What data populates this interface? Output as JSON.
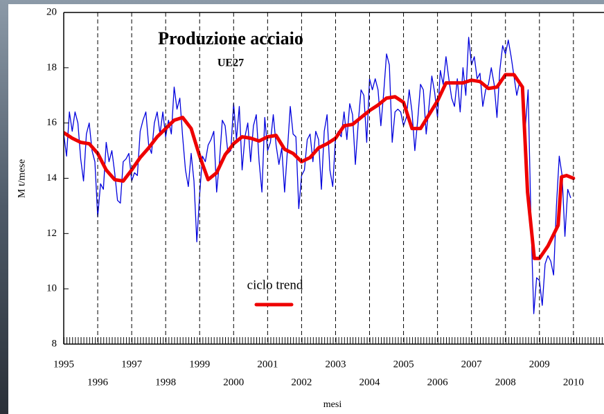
{
  "chart_data": {
    "type": "line",
    "title": "Produzione acciaio",
    "subtitle": "UE27",
    "y_label": "M t/mese",
    "x_label": "mesi",
    "xlim": [
      1995,
      2010.9
    ],
    "ylim": [
      8,
      20
    ],
    "xticks": [
      1995,
      1996,
      1997,
      1998,
      1999,
      2000,
      2001,
      2002,
      2003,
      2004,
      2005,
      2006,
      2007,
      2008,
      2009,
      2010
    ],
    "yticks": [
      8,
      10,
      12,
      14,
      16,
      18,
      20
    ],
    "grid": true,
    "legend": "center",
    "series": [
      {
        "color": "#0000dd",
        "x": [
          1995.0,
          1995.083,
          1995.167,
          1995.25,
          1995.333,
          1995.417,
          1995.5,
          1995.583,
          1995.667,
          1995.75,
          1995.833,
          1995.917,
          1996.0,
          1996.083,
          1996.167,
          1996.25,
          1996.333,
          1996.417,
          1996.5,
          1996.583,
          1996.667,
          1996.75,
          1996.833,
          1996.917,
          1997.0,
          1997.083,
          1997.167,
          1997.25,
          1997.333,
          1997.417,
          1997.5,
          1997.583,
          1997.667,
          1997.75,
          1997.833,
          1997.917,
          1998.0,
          1998.083,
          1998.167,
          1998.25,
          1998.333,
          1998.417,
          1998.5,
          1998.583,
          1998.667,
          1998.75,
          1998.833,
          1998.917,
          1999.0,
          1999.083,
          1999.167,
          1999.25,
          1999.333,
          1999.417,
          1999.5,
          1999.583,
          1999.667,
          1999.75,
          1999.833,
          1999.917,
          2000.0,
          2000.083,
          2000.167,
          2000.25,
          2000.333,
          2000.417,
          2000.5,
          2000.583,
          2000.667,
          2000.75,
          2000.833,
          2000.917,
          2001.0,
          2001.083,
          2001.167,
          2001.25,
          2001.333,
          2001.417,
          2001.5,
          2001.583,
          2001.667,
          2001.75,
          2001.833,
          2001.917,
          2002.0,
          2002.083,
          2002.167,
          2002.25,
          2002.333,
          2002.417,
          2002.5,
          2002.583,
          2002.667,
          2002.75,
          2002.833,
          2002.917,
          2003.0,
          2003.083,
          2003.167,
          2003.25,
          2003.333,
          2003.417,
          2003.5,
          2003.583,
          2003.667,
          2003.75,
          2003.833,
          2003.917,
          2004.0,
          2004.083,
          2004.167,
          2004.25,
          2004.333,
          2004.417,
          2004.5,
          2004.583,
          2004.667,
          2004.75,
          2004.833,
          2004.917,
          2005.0,
          2005.083,
          2005.167,
          2005.25,
          2005.333,
          2005.417,
          2005.5,
          2005.583,
          2005.667,
          2005.75,
          2005.833,
          2005.917,
          2006.0,
          2006.083,
          2006.167,
          2006.25,
          2006.333,
          2006.417,
          2006.5,
          2006.583,
          2006.667,
          2006.75,
          2006.833,
          2006.917,
          2007.0,
          2007.083,
          2007.167,
          2007.25,
          2007.333,
          2007.417,
          2007.5,
          2007.583,
          2007.667,
          2007.75,
          2007.833,
          2007.917,
          2008.0,
          2008.083,
          2008.167,
          2008.25,
          2008.333,
          2008.417,
          2008.5,
          2008.583,
          2008.667,
          2008.75,
          2008.833,
          2008.917,
          2009.0,
          2009.083,
          2009.167,
          2009.25,
          2009.333,
          2009.417,
          2009.5,
          2009.583,
          2009.667,
          2009.75,
          2009.833,
          2009.917
        ],
        "values": [
          15.6,
          14.8,
          16.4,
          15.7,
          16.4,
          16.0,
          14.7,
          13.9,
          15.6,
          16.0,
          15.0,
          14.6,
          12.6,
          13.8,
          13.6,
          15.3,
          14.6,
          15.0,
          14.2,
          13.2,
          13.1,
          14.6,
          14.7,
          14.9,
          13.9,
          14.2,
          14.1,
          15.7,
          16.1,
          16.4,
          15.2,
          14.9,
          16.0,
          16.4,
          15.6,
          16.4,
          15.5,
          16.1,
          15.6,
          17.3,
          16.5,
          16.9,
          15.5,
          14.3,
          13.7,
          14.9,
          13.9,
          11.7,
          13.4,
          14.8,
          14.6,
          15.2,
          15.4,
          15.7,
          13.5,
          14.6,
          16.1,
          15.9,
          14.9,
          15.0,
          16.7,
          15.4,
          16.6,
          14.3,
          15.5,
          16.0,
          14.6,
          15.9,
          16.3,
          14.6,
          13.5,
          16.2,
          15.0,
          15.3,
          16.3,
          15.2,
          14.5,
          15.1,
          13.5,
          15.0,
          16.6,
          15.6,
          15.5,
          12.9,
          14.1,
          14.3,
          15.4,
          15.6,
          14.6,
          15.7,
          15.4,
          13.6,
          15.7,
          16.3,
          14.3,
          13.7,
          15.5,
          15.7,
          15.5,
          16.4,
          15.4,
          16.7,
          16.3,
          14.5,
          16.0,
          17.2,
          17.0,
          15.3,
          17.6,
          17.2,
          17.6,
          17.2,
          15.9,
          17.1,
          18.5,
          18.1,
          15.3,
          16.4,
          16.5,
          16.4,
          15.9,
          16.2,
          17.2,
          16.4,
          15.0,
          16.1,
          17.4,
          17.2,
          15.6,
          16.6,
          17.7,
          17.1,
          16.2,
          17.9,
          17.4,
          18.4,
          17.6,
          16.9,
          16.6,
          17.6,
          16.4,
          18.0,
          17.0,
          19.1,
          18.1,
          18.4,
          17.6,
          17.8,
          16.6,
          17.2,
          17.4,
          18.0,
          17.4,
          16.2,
          17.9,
          18.8,
          18.5,
          19.0,
          18.4,
          17.7,
          17.0,
          17.5,
          17.3,
          15.8,
          17.2,
          12.5,
          9.1,
          10.4,
          10.3,
          9.4,
          10.9,
          11.2,
          11.0,
          10.5,
          13.0,
          14.8,
          14.1,
          11.9,
          13.6,
          13.3
        ]
      },
      {
        "name": "ciclo trend",
        "color": "#ee0000",
        "x": [
          1995.0,
          1995.25,
          1995.5,
          1995.75,
          1996.0,
          1996.25,
          1996.5,
          1996.75,
          1997.0,
          1997.25,
          1997.5,
          1997.75,
          1998.0,
          1998.25,
          1998.5,
          1998.75,
          1999.0,
          1999.25,
          1999.5,
          1999.75,
          2000.0,
          2000.25,
          2000.5,
          2000.75,
          2001.0,
          2001.25,
          2001.5,
          2001.75,
          2002.0,
          2002.25,
          2002.5,
          2002.75,
          2003.0,
          2003.25,
          2003.5,
          2003.75,
          2004.0,
          2004.25,
          2004.5,
          2004.75,
          2005.0,
          2005.25,
          2005.5,
          2005.75,
          2006.0,
          2006.25,
          2006.5,
          2006.75,
          2007.0,
          2007.25,
          2007.5,
          2007.75,
          2008.0,
          2008.25,
          2008.5,
          2008.65,
          2008.85,
          2009.0,
          2009.25,
          2009.55,
          2009.65,
          2009.8,
          2010.0
        ],
        "values": [
          15.65,
          15.45,
          15.3,
          15.25,
          14.9,
          14.3,
          13.95,
          13.9,
          14.3,
          14.75,
          15.1,
          15.5,
          15.8,
          16.1,
          16.2,
          15.8,
          14.8,
          13.95,
          14.2,
          14.85,
          15.25,
          15.5,
          15.45,
          15.35,
          15.5,
          15.55,
          15.05,
          14.9,
          14.6,
          14.75,
          15.1,
          15.25,
          15.45,
          15.9,
          15.95,
          16.2,
          16.45,
          16.65,
          16.9,
          16.95,
          16.75,
          15.8,
          15.8,
          16.3,
          16.8,
          17.45,
          17.45,
          17.45,
          17.55,
          17.5,
          17.25,
          17.3,
          17.75,
          17.75,
          17.3,
          13.5,
          11.1,
          11.1,
          11.55,
          12.3,
          14.05,
          14.1,
          14.0
        ]
      }
    ]
  }
}
